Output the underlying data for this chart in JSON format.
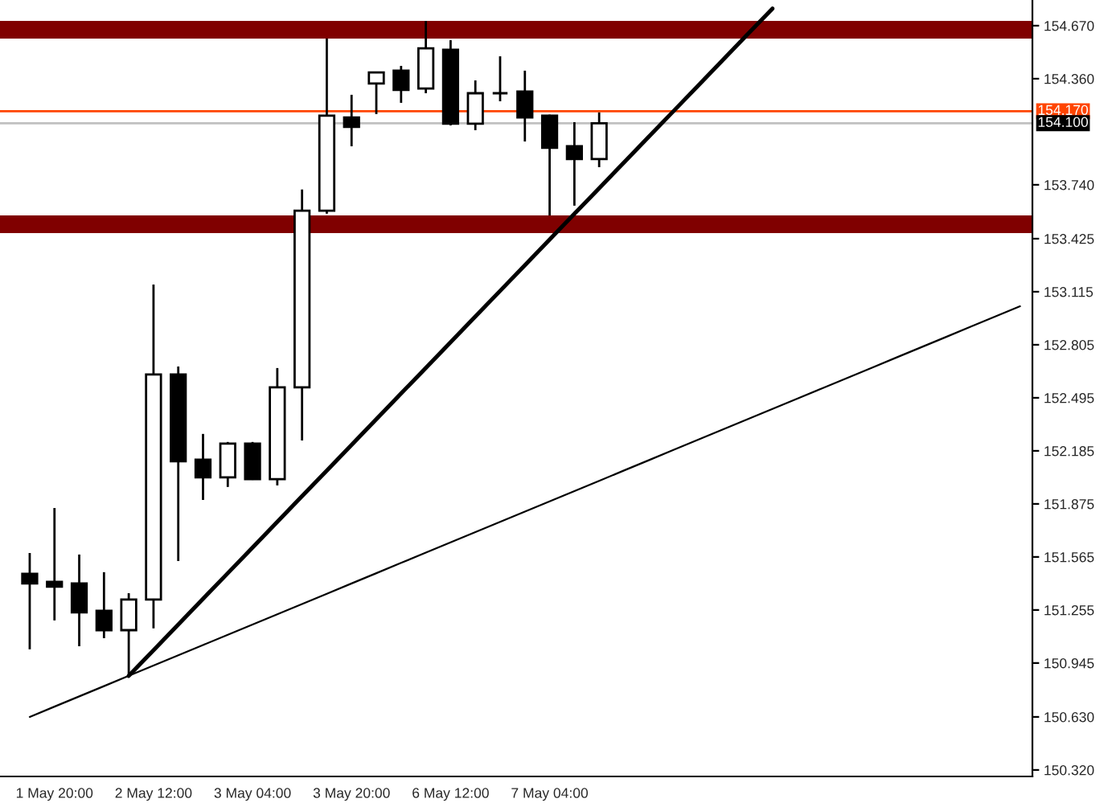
{
  "chart_data": {
    "type": "candlestick",
    "categories": [
      null,
      "1 May 20:00",
      null,
      null,
      null,
      "2 May 12:00",
      null,
      null,
      null,
      "3 May 04:00",
      null,
      null,
      null,
      "3 May 20:00",
      null,
      null,
      null,
      "6 May 12:00",
      null,
      null,
      null,
      "7 May 04:00",
      null,
      null,
      null,
      null,
      null,
      null,
      null,
      null,
      null,
      null,
      null,
      null,
      null,
      null,
      null,
      null,
      null,
      null,
      null
    ],
    "ohlc": [
      [
        151.466,
        151.588,
        151.025,
        151.41
      ],
      [
        151.419,
        151.851,
        151.194,
        151.391
      ],
      [
        151.41,
        151.579,
        151.043,
        151.241
      ],
      [
        151.25,
        151.476,
        151.09,
        151.137
      ],
      [
        151.137,
        151.353,
        150.874,
        151.316
      ],
      [
        151.316,
        153.157,
        151.147,
        152.631
      ],
      [
        152.631,
        152.678,
        151.541,
        152.124
      ],
      [
        152.133,
        152.284,
        151.898,
        152.03
      ],
      [
        152.03,
        152.237,
        151.974,
        152.227
      ],
      [
        152.227,
        152.237,
        152.015,
        152.02
      ],
      [
        152.02,
        152.669,
        151.983,
        152.556
      ],
      [
        152.556,
        153.712,
        152.246,
        153.589
      ],
      [
        153.589,
        154.595,
        153.571,
        154.144
      ],
      [
        154.134,
        154.266,
        153.965,
        154.078
      ],
      [
        154.332,
        154.397,
        154.153,
        154.397
      ],
      [
        154.407,
        154.435,
        154.219,
        154.294
      ],
      [
        154.303,
        154.698,
        154.275,
        154.538
      ],
      [
        154.529,
        154.585,
        154.087,
        154.097
      ],
      [
        154.097,
        154.35,
        154.059,
        154.275
      ],
      [
        154.275,
        154.491,
        154.228,
        154.275
      ],
      [
        154.285,
        154.407,
        153.993,
        154.134
      ],
      [
        154.144,
        154.15,
        153.561,
        153.956
      ],
      [
        153.965,
        154.106,
        153.618,
        153.89
      ],
      [
        153.89,
        154.163,
        153.843,
        154.1
      ],
      null,
      null,
      null,
      null,
      null,
      null,
      null,
      null,
      null,
      null,
      null,
      null,
      null,
      null,
      null,
      null,
      null
    ],
    "series": [
      {
        "type": "line",
        "color": "#000000",
        "line_style": "solid",
        "values": [
          150.63,
          150.69,
          150.75,
          150.81,
          150.87,
          150.93,
          150.99,
          151.05,
          151.11,
          151.17,
          151.23,
          151.29,
          151.35,
          151.41,
          151.47,
          151.53,
          151.59,
          151.65,
          151.71,
          151.77,
          151.83,
          151.89,
          151.95,
          152.01,
          152.07,
          152.13,
          152.19,
          152.25,
          152.31,
          152.37,
          152.43,
          152.49,
          152.55,
          152.61,
          152.67,
          152.73,
          152.79,
          152.85,
          152.91,
          152.97,
          153.03
        ]
      },
      {
        "type": "line",
        "color": "#000000",
        "line_style": "solid",
        "values": [
          null,
          null,
          null,
          null,
          150.87,
          151.02,
          151.17,
          151.32,
          151.47,
          151.62,
          151.77,
          151.92,
          152.07,
          152.22,
          152.37,
          152.52,
          152.67,
          152.82,
          152.97,
          153.12,
          153.27,
          153.42,
          153.57,
          153.72,
          153.87,
          154.02,
          154.17,
          154.32,
          154.47,
          154.62,
          154.77,
          null,
          null,
          null,
          null,
          null,
          null,
          null,
          null,
          null,
          null
        ]
      }
    ],
    "ylim": [
      150.282,
      154.82
    ],
    "yticks": [
      {
        "value": 150.32,
        "label": "150.320"
      },
      {
        "value": 150.63,
        "label": "150.630"
      },
      150.945,
      151.255,
      151.565,
      151.875,
      152.185,
      152.495,
      152.805,
      153.115,
      153.425,
      {
        "value": 153.74,
        "label": "153.740"
      },
      {
        "value": 154.36,
        "label": "154.360"
      },
      {
        "value": 154.67,
        "label": "154.670"
      }
    ],
    "ref_lines": [
      {
        "axis": "y",
        "value": 154.17,
        "label": "154.170",
        "color": "#ff4500",
        "line_style": "solid"
      },
      {
        "axis": "y",
        "value": 154.1,
        "label": "154.100",
        "color": "#c0c0c0",
        "line_style": "solid"
      }
    ],
    "bands": [
      {
        "axis": "y",
        "from": 154.595,
        "to": 154.698,
        "color": "#800000"
      },
      {
        "axis": "y",
        "from": 153.458,
        "to": 153.561,
        "color": "#800000"
      }
    ],
    "grid": false,
    "legend": false
  }
}
